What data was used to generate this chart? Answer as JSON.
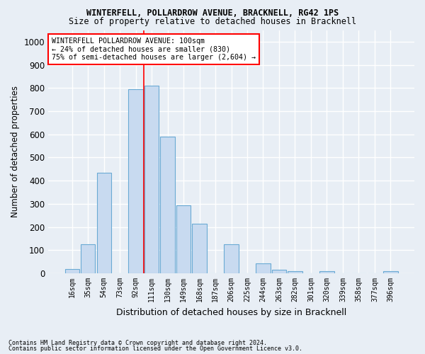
{
  "title1": "WINTERFELL, POLLARDROW AVENUE, BRACKNELL, RG42 1PS",
  "title2": "Size of property relative to detached houses in Bracknell",
  "xlabel": "Distribution of detached houses by size in Bracknell",
  "ylabel": "Number of detached properties",
  "bar_color": "#c8daf0",
  "bar_edge_color": "#6aaad4",
  "categories": [
    "16sqm",
    "35sqm",
    "54sqm",
    "73sqm",
    "92sqm",
    "111sqm",
    "130sqm",
    "149sqm",
    "168sqm",
    "187sqm",
    "206sqm",
    "225sqm",
    "244sqm",
    "263sqm",
    "282sqm",
    "301sqm",
    "320sqm",
    "339sqm",
    "358sqm",
    "377sqm",
    "396sqm"
  ],
  "values": [
    20,
    125,
    435,
    0,
    795,
    810,
    590,
    295,
    213,
    0,
    127,
    0,
    42,
    15,
    10,
    0,
    10,
    0,
    0,
    0,
    10
  ],
  "ylim": [
    0,
    1050
  ],
  "yticks": [
    0,
    100,
    200,
    300,
    400,
    500,
    600,
    700,
    800,
    900,
    1000
  ],
  "redline_x": 4.5,
  "annotation_text": "WINTERFELL POLLARDROW AVENUE: 100sqm\n← 24% of detached houses are smaller (830)\n75% of semi-detached houses are larger (2,604) →",
  "footnote1": "Contains HM Land Registry data © Crown copyright and database right 2024.",
  "footnote2": "Contains public sector information licensed under the Open Government Licence v3.0.",
  "background_color": "#e8eef5",
  "grid_color": "#ffffff"
}
